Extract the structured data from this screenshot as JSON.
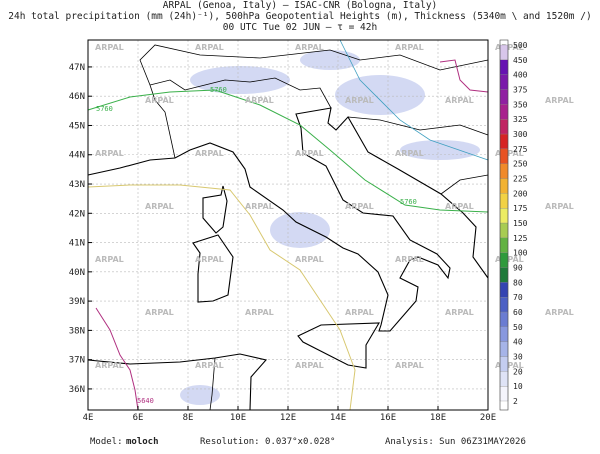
{
  "header": {
    "lines": [
      "ARPAL (Genoa, Italy)  –  ISAC-CNR (Bologna, Italy)",
      "24h total precipitation (mm (24h)⁻¹), 500hPa Geopotential Heights (m), Thickness (5340m \\ and 1520m /)",
      "00 UTC Tue 02 JUN  –  τ = 42h"
    ]
  },
  "map": {
    "lon_range": [
      4,
      20
    ],
    "lat_range": [
      35.28,
      47.92
    ],
    "lon_ticks": [
      {
        "value": 4,
        "label": "4E"
      },
      {
        "value": 6,
        "label": "6E"
      },
      {
        "value": 8,
        "label": "8E"
      },
      {
        "value": 10,
        "label": "10E"
      },
      {
        "value": 12,
        "label": "12E"
      },
      {
        "value": 14,
        "label": "14E"
      },
      {
        "value": 16,
        "label": "16E"
      },
      {
        "value": 18,
        "label": "18E"
      },
      {
        "value": 20,
        "label": "20E"
      }
    ],
    "lat_ticks": [
      {
        "value": 36,
        "label": "36N"
      },
      {
        "value": 37,
        "label": "37N"
      },
      {
        "value": 38,
        "label": "38N"
      },
      {
        "value": 39,
        "label": "39N"
      },
      {
        "value": 40,
        "label": "40N"
      },
      {
        "value": 41,
        "label": "41N"
      },
      {
        "value": 42,
        "label": "42N"
      },
      {
        "value": 43,
        "label": "43N"
      },
      {
        "value": 44,
        "label": "44N"
      },
      {
        "value": 45,
        "label": "45N"
      },
      {
        "value": 46,
        "label": "46N"
      },
      {
        "value": 47,
        "label": "47N"
      }
    ],
    "watermark": "ARPAL",
    "contour_labels": [
      "5760",
      "5760",
      "5760",
      "5640"
    ]
  },
  "colorbar": {
    "levels": [
      2,
      10,
      20,
      30,
      40,
      50,
      60,
      70,
      80,
      90,
      100,
      125,
      150,
      175,
      200,
      225,
      250,
      275,
      300,
      325,
      350,
      375,
      400,
      450,
      500
    ],
    "colors": [
      "#f4f4fc",
      "#dfe3f6",
      "#c4cdf0",
      "#a6b4e8",
      "#8898de",
      "#6a7cd2",
      "#4c60c4",
      "#3444b2",
      "#1f7a3a",
      "#2f9a3c",
      "#62b242",
      "#a8cc52",
      "#ecec62",
      "#f2d244",
      "#f2b232",
      "#f08a2a",
      "#e85222",
      "#d62424",
      "#c02462",
      "#a8228e",
      "#9020a2",
      "#7a1aaa",
      "#6612b2",
      "#d8c6ea"
    ]
  },
  "footer": {
    "model_label": "Model:",
    "model": "moloch",
    "resolution": "Resolution: 0.037°x0.028°",
    "analysis": "Analysis: Sun 06Z31MAY2026"
  }
}
